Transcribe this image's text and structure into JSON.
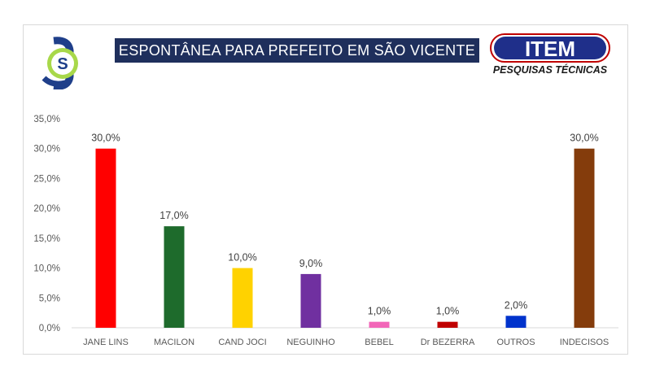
{
  "header": {
    "title": "ESPONTÂNEA PARA PREFEITO EM SÃO VICENTE",
    "brand_main": "ITEM",
    "brand_sub": "PESQUISAS TÉCNICAS",
    "logo_left_letter": "S"
  },
  "chart_data": {
    "type": "bar",
    "categories": [
      "JANE LINS",
      "MACILON",
      "CAND JOCI",
      "NEGUINHO",
      "BEBEL",
      "Dr BEZERRA",
      "OUTROS",
      "INDECISOS"
    ],
    "values": [
      30.0,
      17.0,
      10.0,
      9.0,
      1.0,
      1.0,
      2.0,
      30.0
    ],
    "data_labels": [
      "30,0%",
      "17,0%",
      "10,0%",
      "9,0%",
      "1,0%",
      "1,0%",
      "2,0%",
      "30,0%"
    ],
    "colors": [
      "#ff0000",
      "#1e6b2c",
      "#ffd200",
      "#7030a0",
      "#f266b8",
      "#c00000",
      "#0033cc",
      "#843c0c"
    ],
    "title": "ESPONTÂNEA PARA PREFEITO EM SÃO VICENTE",
    "xlabel": "",
    "ylabel": "",
    "ylim": [
      0,
      35
    ],
    "yticks": [
      0,
      5,
      10,
      15,
      20,
      25,
      30,
      35
    ],
    "ytick_labels": [
      "0,0%",
      "5,0%",
      "10,0%",
      "15,0%",
      "20,0%",
      "25,0%",
      "30,0%",
      "35,0%"
    ],
    "grid": false
  }
}
